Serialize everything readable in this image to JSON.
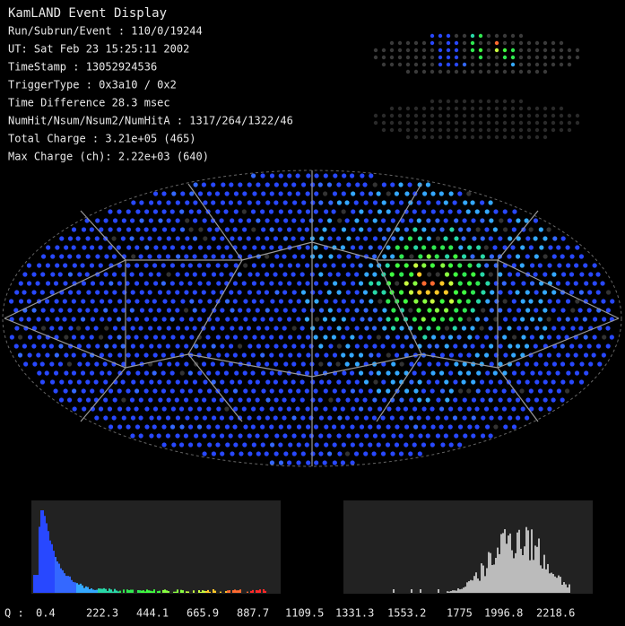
{
  "header": {
    "title": "KamLAND Event Display",
    "lines": [
      "Run/Subrun/Event : 110/0/19244",
      "UT: Sat Feb 23 15:25:11 2002",
      "TimeStamp : 13052924536",
      "TriggerType : 0x3a10 / 0x2",
      "Time Difference 28.3 msec",
      "NumHit/Nsum/Nsum2/NumHitA : 1317/264/1322/46",
      "Total Charge : 3.21e+05 (465)",
      "Max Charge (ch): 2.22e+03 (640)"
    ]
  },
  "scale": {
    "label": "Q :",
    "ticks": [
      {
        "text": "0.4",
        "color": "#2848ff"
      },
      {
        "text": "222.3",
        "color": "#3468ff"
      },
      {
        "text": "444.1",
        "color": "#34a8ff"
      },
      {
        "text": "665.9",
        "color": "#28d8a8"
      },
      {
        "text": "887.7",
        "color": "#30e850"
      },
      {
        "text": "1109.5",
        "color": "#40ff40"
      },
      {
        "text": "1331.3",
        "color": "#88ff40"
      },
      {
        "text": "1553.2",
        "color": "#c8ff40"
      },
      {
        "text": "1775",
        "color": "#ffc828"
      },
      {
        "text": "1996.8",
        "color": "#ff6a30"
      },
      {
        "text": "2218.6",
        "color": "#ff2828"
      }
    ]
  }
}
